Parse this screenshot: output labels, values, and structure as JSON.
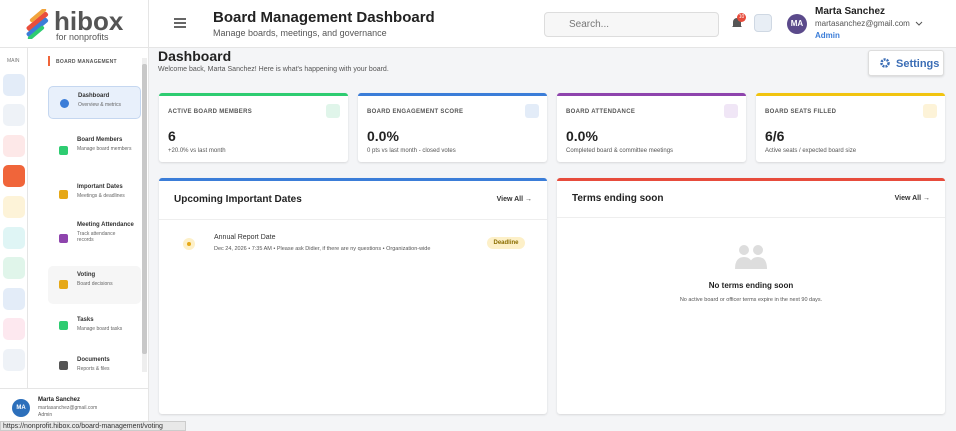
{
  "logo": {
    "name": "hibox",
    "tagline": "for nonprofits"
  },
  "header": {
    "title": "Board Management Dashboard",
    "subtitle": "Manage boards, meetings, and governance",
    "search_placeholder": "Search...",
    "notification_count": "10",
    "user": {
      "initials": "MA",
      "name": "Marta Sanchez",
      "email": "martasanchez@gmail.com",
      "role": "Admin"
    }
  },
  "rail": {
    "label": "MAIN"
  },
  "sidebar": {
    "section": "BOARD MANAGEMENT",
    "items": [
      {
        "title": "Dashboard",
        "subtitle": "Overview & metrics"
      },
      {
        "title": "Board Members",
        "subtitle": "Manage board members"
      },
      {
        "title": "Important Dates",
        "subtitle": "Meetings & deadlines"
      },
      {
        "title": "Meeting Attendance",
        "subtitle": "Track attendance records"
      },
      {
        "title": "Voting",
        "subtitle": "Board decisions"
      },
      {
        "title": "Tasks",
        "subtitle": "Manage board tasks"
      },
      {
        "title": "Documents",
        "subtitle": "Reports & files"
      }
    ],
    "user": {
      "initials": "MA",
      "name": "Marta Sanchez",
      "email": "martasanchez@gmail.com",
      "role": "Admin"
    }
  },
  "page": {
    "title": "Dashboard",
    "welcome": "Welcome back, Marta Sanchez! Here is what's happening with your board.",
    "settings": "Settings"
  },
  "stats": [
    {
      "label": "ACTIVE BOARD MEMBERS",
      "value": "6",
      "note": "+20.0% vs last month"
    },
    {
      "label": "BOARD ENGAGEMENT SCORE",
      "value": "0.0%",
      "note": "0 pts vs last month - closed votes"
    },
    {
      "label": "BOARD ATTENDANCE",
      "value": "0.0%",
      "note": "Completed board & committee meetings"
    },
    {
      "label": "BOARD SEATS FILLED",
      "value": "6/6",
      "note": "Active seats / expected board size"
    }
  ],
  "upcoming": {
    "title": "Upcoming Important Dates",
    "view_all": "View All →",
    "events": [
      {
        "title": "Annual Report Date",
        "details": "Dec 24, 2026 • 7:35 AM • Please ask Didier, if there are ny questions • Organization-wide",
        "badge": "Deadline"
      }
    ]
  },
  "terms": {
    "title": "Terms ending soon",
    "view_all": "View All →",
    "empty_title": "No terms ending soon",
    "empty_text": "No active board or officer terms expire in the next 90 days."
  },
  "status_bar": {
    "url": "https://nonprofit.hibox.co/board-management/voting"
  }
}
